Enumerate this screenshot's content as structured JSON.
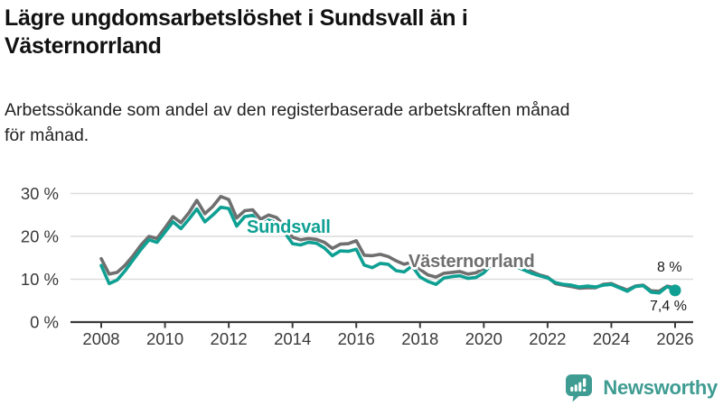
{
  "header": {
    "title_lines": [
      "Lägre ungdomsarbetslöshet i Sundsvall än i",
      "Västernorrland"
    ],
    "subtitle_lines": [
      "Arbetssökande som andel av den registerbaserade arbetskraften månad",
      "för månad."
    ]
  },
  "chart_data": {
    "type": "line",
    "title": "Lägre ungdomsarbetslöshet i Sundsvall än i Västernorrland",
    "xlabel": "",
    "ylabel": "Arbetssökande som andel av den registerbaserade arbetskraften",
    "grid": "horizontal",
    "legend_position": "inline-labels",
    "x_start": 2008,
    "x_step": 0.25,
    "xlim": [
      2008,
      2026
    ],
    "ylim": [
      0,
      31
    ],
    "x_ticks": [
      2008,
      2010,
      2012,
      2014,
      2016,
      2018,
      2020,
      2022,
      2024,
      2026
    ],
    "x_tick_labels": [
      "2008",
      "2010",
      "2012",
      "2014",
      "2016",
      "2018",
      "2020",
      "2022",
      "2024",
      "2026"
    ],
    "y_tick_values": [
      0,
      10,
      20,
      30
    ],
    "y_tick_labels": [
      "0 %",
      "10 %",
      "20 %",
      "30 %"
    ],
    "series": [
      {
        "name": "Västernorrland",
        "color": "#6F6F6F",
        "end_label": "8 %",
        "end_dot": false,
        "values": [
          14.8,
          11.2,
          11.6,
          13.3,
          15.5,
          18.0,
          20.0,
          19.5,
          22.0,
          24.6,
          23.2,
          25.5,
          28.4,
          25.3,
          27.0,
          29.3,
          28.6,
          24.3,
          26.0,
          26.2,
          24.0,
          25.0,
          24.4,
          22.4,
          19.8,
          19.2,
          19.5,
          19.3,
          18.6,
          17.2,
          18.2,
          18.3,
          19.0,
          15.6,
          15.5,
          15.8,
          15.3,
          14.3,
          13.5,
          14.0,
          12.3,
          11.0,
          10.5,
          11.4,
          11.6,
          11.8,
          11.2,
          11.5,
          12.5,
          14.5,
          15.2,
          14.4,
          13.8,
          12.8,
          11.8,
          11.0,
          10.5,
          9.0,
          8.6,
          8.3,
          7.9,
          8.0,
          8.0,
          8.8,
          9.0,
          8.2,
          7.5,
          8.4,
          8.6,
          7.3,
          7.2,
          8.4,
          8.0
        ]
      },
      {
        "name": "Sundsvall",
        "color": "#0FA093",
        "end_label": "7,4 %",
        "end_dot": true,
        "values": [
          13.2,
          9.0,
          9.8,
          12.0,
          14.5,
          17.0,
          19.2,
          18.6,
          21.0,
          23.4,
          21.8,
          24.0,
          26.4,
          23.4,
          25.0,
          26.8,
          26.5,
          22.4,
          24.6,
          24.9,
          22.6,
          23.8,
          23.2,
          21.0,
          18.3,
          18.0,
          18.6,
          18.4,
          17.3,
          15.5,
          16.6,
          16.5,
          17.0,
          13.3,
          12.7,
          13.7,
          13.5,
          12.0,
          11.7,
          13.1,
          10.5,
          9.5,
          8.8,
          10.3,
          10.6,
          10.8,
          10.2,
          10.4,
          11.5,
          13.5,
          14.2,
          13.6,
          13.0,
          12.2,
          11.4,
          10.8,
          10.3,
          9.2,
          8.8,
          8.6,
          8.2,
          8.4,
          8.2,
          8.6,
          8.8,
          8.0,
          7.2,
          8.3,
          8.5,
          7.0,
          6.8,
          8.3,
          7.4
        ]
      }
    ]
  },
  "footer": {
    "brand": "Newsworthy",
    "brand_color": "#3F9C92",
    "logo_icon": "bar-chart-pin-icon"
  }
}
